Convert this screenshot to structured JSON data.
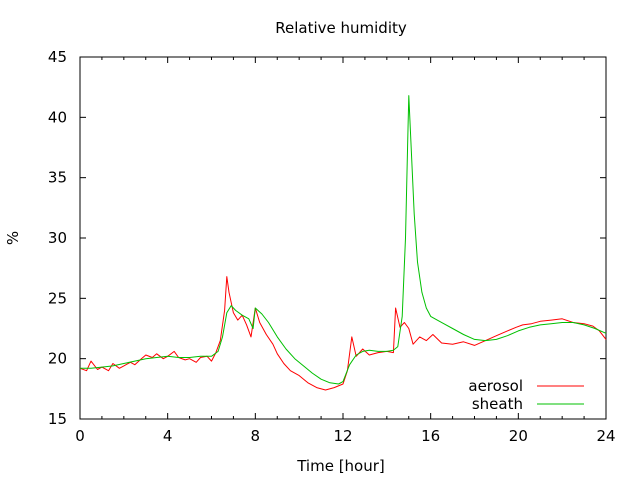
{
  "chart_data": {
    "type": "line",
    "title": "Relative humidity",
    "xlabel": "Time [hour]",
    "ylabel": "%",
    "xlim": [
      0,
      24
    ],
    "ylim": [
      15,
      45
    ],
    "xticks": [
      "0",
      "4",
      "8",
      "12",
      "16",
      "20",
      "24"
    ],
    "yticks": [
      "15",
      "20",
      "25",
      "30",
      "35",
      "40",
      "45"
    ],
    "grid": false,
    "legend_position": "bottom-right",
    "series": [
      {
        "name": "aerosol",
        "color": "#ff0000",
        "points": [
          [
            0,
            19.2
          ],
          [
            0.3,
            19.0
          ],
          [
            0.5,
            19.8
          ],
          [
            0.8,
            19.1
          ],
          [
            1,
            19.3
          ],
          [
            1.3,
            19.0
          ],
          [
            1.5,
            19.6
          ],
          [
            1.8,
            19.2
          ],
          [
            2,
            19.4
          ],
          [
            2.3,
            19.7
          ],
          [
            2.5,
            19.5
          ],
          [
            2.8,
            20.0
          ],
          [
            3,
            20.3
          ],
          [
            3.3,
            20.1
          ],
          [
            3.5,
            20.4
          ],
          [
            3.8,
            20.0
          ],
          [
            4,
            20.2
          ],
          [
            4.3,
            20.6
          ],
          [
            4.5,
            20.1
          ],
          [
            4.8,
            19.9
          ],
          [
            5,
            20.0
          ],
          [
            5.3,
            19.7
          ],
          [
            5.5,
            20.1
          ],
          [
            5.8,
            20.2
          ],
          [
            6,
            19.8
          ],
          [
            6.2,
            20.5
          ],
          [
            6.4,
            21.5
          ],
          [
            6.6,
            24.0
          ],
          [
            6.7,
            26.8
          ],
          [
            6.8,
            25.5
          ],
          [
            7.0,
            23.8
          ],
          [
            7.2,
            23.2
          ],
          [
            7.4,
            23.6
          ],
          [
            7.6,
            22.8
          ],
          [
            7.8,
            21.8
          ],
          [
            8.0,
            24.2
          ],
          [
            8.2,
            23.0
          ],
          [
            8.5,
            22.0
          ],
          [
            8.8,
            21.2
          ],
          [
            9.0,
            20.4
          ],
          [
            9.3,
            19.6
          ],
          [
            9.6,
            19.0
          ],
          [
            10.0,
            18.6
          ],
          [
            10.4,
            18.0
          ],
          [
            10.8,
            17.6
          ],
          [
            11.2,
            17.4
          ],
          [
            11.6,
            17.6
          ],
          [
            12.0,
            17.9
          ],
          [
            12.2,
            19.0
          ],
          [
            12.4,
            21.8
          ],
          [
            12.6,
            20.2
          ],
          [
            12.9,
            20.8
          ],
          [
            13.2,
            20.3
          ],
          [
            13.6,
            20.5
          ],
          [
            14.0,
            20.6
          ],
          [
            14.3,
            20.5
          ],
          [
            14.4,
            24.2
          ],
          [
            14.6,
            22.6
          ],
          [
            14.8,
            23.0
          ],
          [
            15.0,
            22.5
          ],
          [
            15.2,
            21.2
          ],
          [
            15.5,
            21.8
          ],
          [
            15.8,
            21.5
          ],
          [
            16.1,
            22.0
          ],
          [
            16.5,
            21.3
          ],
          [
            17.0,
            21.2
          ],
          [
            17.5,
            21.4
          ],
          [
            18.0,
            21.1
          ],
          [
            18.5,
            21.5
          ],
          [
            19.0,
            21.9
          ],
          [
            19.5,
            22.3
          ],
          [
            19.9,
            22.6
          ],
          [
            20.2,
            22.8
          ],
          [
            20.6,
            22.9
          ],
          [
            21.0,
            23.1
          ],
          [
            21.5,
            23.2
          ],
          [
            22.0,
            23.3
          ],
          [
            22.5,
            23.0
          ],
          [
            23.0,
            22.9
          ],
          [
            23.4,
            22.7
          ],
          [
            23.7,
            22.3
          ],
          [
            24,
            21.6
          ]
        ]
      },
      {
        "name": "sheath",
        "color": "#00c000",
        "points": [
          [
            0,
            19.2
          ],
          [
            0.5,
            19.2
          ],
          [
            1,
            19.3
          ],
          [
            1.5,
            19.4
          ],
          [
            2,
            19.6
          ],
          [
            2.5,
            19.8
          ],
          [
            3,
            20.0
          ],
          [
            3.5,
            20.1
          ],
          [
            4,
            20.2
          ],
          [
            4.5,
            20.1
          ],
          [
            5,
            20.1
          ],
          [
            5.5,
            20.2
          ],
          [
            6,
            20.2
          ],
          [
            6.3,
            20.6
          ],
          [
            6.5,
            21.8
          ],
          [
            6.7,
            23.8
          ],
          [
            6.9,
            24.4
          ],
          [
            7.1,
            24.0
          ],
          [
            7.4,
            23.6
          ],
          [
            7.7,
            23.3
          ],
          [
            7.9,
            22.5
          ],
          [
            8.0,
            24.2
          ],
          [
            8.3,
            23.7
          ],
          [
            8.6,
            23.0
          ],
          [
            9.0,
            21.8
          ],
          [
            9.4,
            20.8
          ],
          [
            9.8,
            20.0
          ],
          [
            10.2,
            19.4
          ],
          [
            10.6,
            18.8
          ],
          [
            11.0,
            18.3
          ],
          [
            11.4,
            18.0
          ],
          [
            11.8,
            17.9
          ],
          [
            12.0,
            18.1
          ],
          [
            12.3,
            19.5
          ],
          [
            12.6,
            20.3
          ],
          [
            12.9,
            20.6
          ],
          [
            13.2,
            20.7
          ],
          [
            13.6,
            20.6
          ],
          [
            14.0,
            20.6
          ],
          [
            14.3,
            20.7
          ],
          [
            14.5,
            21.0
          ],
          [
            14.7,
            23.5
          ],
          [
            14.85,
            30.0
          ],
          [
            14.95,
            38.0
          ],
          [
            15.0,
            41.8
          ],
          [
            15.1,
            38.0
          ],
          [
            15.25,
            32.0
          ],
          [
            15.4,
            28.0
          ],
          [
            15.6,
            25.5
          ],
          [
            15.8,
            24.2
          ],
          [
            16.0,
            23.5
          ],
          [
            16.3,
            23.2
          ],
          [
            16.6,
            22.9
          ],
          [
            17.0,
            22.5
          ],
          [
            17.5,
            22.0
          ],
          [
            18.0,
            21.6
          ],
          [
            18.5,
            21.5
          ],
          [
            19.0,
            21.6
          ],
          [
            19.5,
            21.9
          ],
          [
            20.0,
            22.3
          ],
          [
            20.5,
            22.6
          ],
          [
            21.0,
            22.8
          ],
          [
            21.5,
            22.9
          ],
          [
            22.0,
            23.0
          ],
          [
            22.5,
            23.0
          ],
          [
            23.0,
            22.8
          ],
          [
            23.5,
            22.5
          ],
          [
            24,
            22.1
          ]
        ]
      }
    ]
  }
}
